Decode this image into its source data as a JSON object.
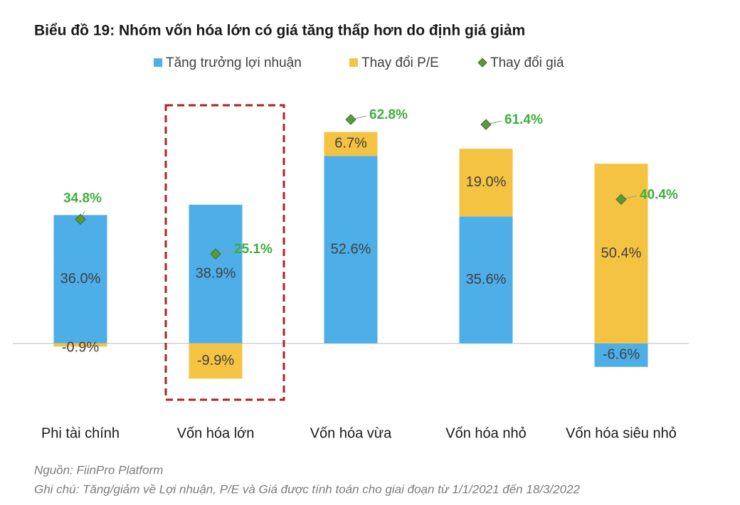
{
  "chart_data": {
    "type": "bar",
    "stacked": true,
    "title": "Biểu đồ 19: Nhóm vốn hóa lớn có giá tăng thấp hơn do định giá giảm",
    "categories": [
      "Phi tài chính",
      "Vốn hóa lớn",
      "Vốn hóa vừa",
      "Vốn hóa nhỏ",
      "Vốn hóa siêu nhỏ"
    ],
    "ylim": [
      -20,
      70
    ],
    "series": [
      {
        "name": "Tăng trưởng lợi nhuận",
        "color": "#4daee8",
        "type": "bar",
        "values": [
          36.0,
          38.9,
          52.6,
          35.6,
          -6.6
        ],
        "value_labels": [
          "36.0%",
          "38.9%",
          "52.6%",
          "35.6%",
          "-6.6%"
        ]
      },
      {
        "name": "Thay đổi P/E",
        "color": "#f5c342",
        "type": "bar",
        "values": [
          -0.9,
          -9.9,
          6.7,
          19.0,
          50.4
        ],
        "value_labels": [
          "-0.9%",
          "-9.9%",
          "6.7%",
          "19.0%",
          "50.4%"
        ]
      },
      {
        "name": "Thay đổi giá",
        "color": "#5a9a3c",
        "type": "scatter",
        "values": [
          34.8,
          25.1,
          62.8,
          61.4,
          40.4
        ],
        "value_labels": [
          "34.8%",
          "25.1%",
          "62.8%",
          "61.4%",
          "40.4%"
        ]
      }
    ],
    "highlight_category": 1,
    "source": "Nguồn: FiinPro Platform",
    "note": "Ghi chú: Tăng/giảm về Lợi nhuận, P/E và Giá được tính toán cho giai đoạn từ 1/1/2021 đến 18/3/2022"
  }
}
